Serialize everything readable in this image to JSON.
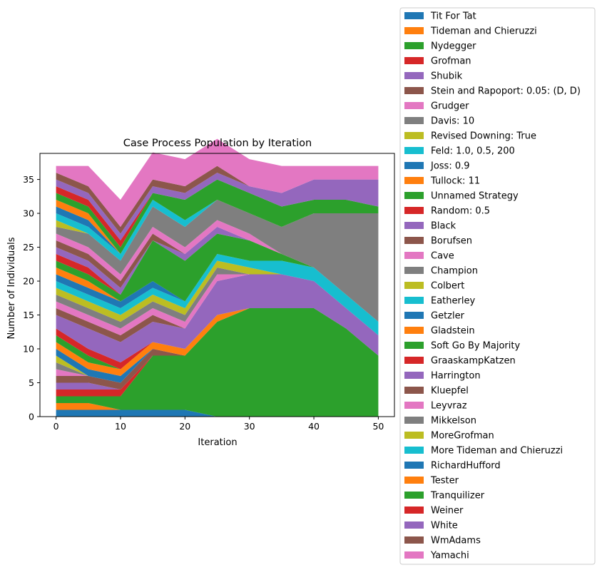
{
  "chart_data": {
    "type": "area",
    "stacked": true,
    "title": "Case Process Population by Iteration",
    "xlabel": "Iteration",
    "ylabel": "Number of Individuals",
    "xlim": [
      -2.5,
      52.5
    ],
    "ylim": [
      0,
      38.85
    ],
    "xticks": [
      0,
      10,
      20,
      30,
      40,
      50
    ],
    "yticks": [
      0,
      5,
      10,
      15,
      20,
      25,
      30,
      35
    ],
    "grid": false,
    "legend_position": "outside right",
    "x": [
      0,
      5,
      10,
      15,
      20,
      25,
      30,
      35,
      40,
      45,
      50
    ],
    "series": [
      {
        "name": "Tit For Tat",
        "color": "#1f77b4",
        "values": [
          1,
          1,
          1,
          1,
          1,
          0,
          0,
          0,
          0,
          0,
          0
        ]
      },
      {
        "name": "Tideman and Chieruzzi",
        "color": "#ff7f0e",
        "values": [
          1,
          1,
          0,
          0,
          0,
          0,
          0,
          0,
          0,
          0,
          0
        ]
      },
      {
        "name": "Nydegger",
        "color": "#2ca02c",
        "values": [
          1,
          1,
          2,
          8,
          8,
          14,
          16,
          16,
          16,
          13,
          9
        ]
      },
      {
        "name": "Grofman",
        "color": "#d62728",
        "values": [
          1,
          1,
          1,
          0,
          0,
          0,
          0,
          0,
          0,
          0,
          0
        ]
      },
      {
        "name": "Shubik",
        "color": "#9467bd",
        "values": [
          1,
          1,
          0,
          0,
          0,
          0,
          0,
          0,
          0,
          0,
          0
        ]
      },
      {
        "name": "Stein and Rapoport: 0.05: (D, D)",
        "color": "#8c564b",
        "values": [
          1,
          1,
          1,
          1,
          0,
          0,
          0,
          0,
          0,
          0,
          0
        ]
      },
      {
        "name": "Grudger",
        "color": "#e377c2",
        "values": [
          1,
          0,
          0,
          0,
          0,
          0,
          0,
          0,
          0,
          0,
          0
        ]
      },
      {
        "name": "Davis: 10",
        "color": "#7f7f7f",
        "values": [
          1,
          0,
          0,
          0,
          0,
          0,
          0,
          0,
          0,
          0,
          0
        ]
      },
      {
        "name": "Revised Downing: True",
        "color": "#bcbd22",
        "values": [
          1,
          0,
          0,
          0,
          0,
          0,
          0,
          0,
          0,
          0,
          0
        ]
      },
      {
        "name": "Feld: 1.0, 0.5, 200",
        "color": "#17becf",
        "values": [
          0,
          0,
          0,
          0,
          0,
          0,
          0,
          0,
          0,
          0,
          0
        ]
      },
      {
        "name": "Joss: 0.9",
        "color": "#1f77b4",
        "values": [
          1,
          1,
          1,
          0,
          0,
          0,
          0,
          0,
          0,
          0,
          0
        ]
      },
      {
        "name": "Tullock: 11",
        "color": "#ff7f0e",
        "values": [
          1,
          1,
          1,
          1,
          1,
          1,
          0,
          0,
          0,
          0,
          0
        ]
      },
      {
        "name": "Unnamed Strategy",
        "color": "#2ca02c",
        "values": [
          1,
          1,
          0,
          0,
          0,
          0,
          0,
          0,
          0,
          0,
          0
        ]
      },
      {
        "name": "Random: 0.5",
        "color": "#d62728",
        "values": [
          1,
          1,
          1,
          0,
          0,
          0,
          0,
          0,
          0,
          0,
          0
        ]
      },
      {
        "name": "Black",
        "color": "#9467bd",
        "values": [
          2,
          3,
          3,
          3,
          3,
          5,
          5,
          5,
          4,
          3,
          3
        ]
      },
      {
        "name": "Borufsen",
        "color": "#8c564b",
        "values": [
          1,
          1,
          1,
          1,
          0,
          0,
          0,
          0,
          0,
          0,
          0
        ]
      },
      {
        "name": "Cave",
        "color": "#e377c2",
        "values": [
          1,
          1,
          1,
          1,
          1,
          1,
          0,
          0,
          0,
          0,
          0
        ]
      },
      {
        "name": "Champion",
        "color": "#7f7f7f",
        "values": [
          1,
          1,
          1,
          1,
          1,
          1,
          0,
          0,
          0,
          0,
          0
        ]
      },
      {
        "name": "Colbert",
        "color": "#bcbd22",
        "values": [
          1,
          1,
          1,
          1,
          1,
          1,
          1,
          0,
          0,
          0,
          0
        ]
      },
      {
        "name": "Eatherley",
        "color": "#17becf",
        "values": [
          1,
          1,
          1,
          1,
          1,
          1,
          1,
          2,
          2,
          2,
          2
        ]
      },
      {
        "name": "Getzler",
        "color": "#1f77b4",
        "values": [
          1,
          1,
          1,
          1,
          0,
          0,
          0,
          0,
          0,
          0,
          0
        ]
      },
      {
        "name": "Gladstein",
        "color": "#ff7f0e",
        "values": [
          1,
          1,
          0,
          0,
          0,
          0,
          0,
          0,
          0,
          0,
          0
        ]
      },
      {
        "name": "Soft Go By Majority",
        "color": "#2ca02c",
        "values": [
          1,
          1,
          1,
          6,
          6,
          3,
          3,
          1,
          0,
          0,
          0
        ]
      },
      {
        "name": "GraaskampKatzen",
        "color": "#d62728",
        "values": [
          1,
          1,
          0,
          0,
          0,
          0,
          0,
          0,
          0,
          0,
          0
        ]
      },
      {
        "name": "Harrington",
        "color": "#9467bd",
        "values": [
          1,
          1,
          1,
          0,
          1,
          1,
          0,
          0,
          0,
          0,
          0
        ]
      },
      {
        "name": "Kluepfel",
        "color": "#8c564b",
        "values": [
          1,
          1,
          1,
          1,
          0,
          0,
          0,
          0,
          0,
          0,
          0
        ]
      },
      {
        "name": "Leyvraz",
        "color": "#e377c2",
        "values": [
          1,
          1,
          1,
          1,
          1,
          1,
          1,
          0,
          0,
          0,
          0
        ]
      },
      {
        "name": "Mikkelson",
        "color": "#7f7f7f",
        "values": [
          1,
          2,
          2,
          3,
          3,
          3,
          3,
          4,
          8,
          12,
          16
        ]
      },
      {
        "name": "MoreGrofman",
        "color": "#bcbd22",
        "values": [
          1,
          0,
          0,
          0,
          0,
          0,
          0,
          0,
          0,
          0,
          0
        ]
      },
      {
        "name": "More Tideman and Chieruzzi",
        "color": "#17becf",
        "values": [
          1,
          1,
          1,
          1,
          1,
          0,
          0,
          0,
          0,
          0,
          0
        ]
      },
      {
        "name": "RichardHufford",
        "color": "#1f77b4",
        "values": [
          1,
          1,
          0,
          0,
          0,
          0,
          0,
          0,
          0,
          0,
          0
        ]
      },
      {
        "name": "Tester",
        "color": "#ff7f0e",
        "values": [
          1,
          1,
          0,
          0,
          0,
          0,
          0,
          0,
          0,
          0,
          0
        ]
      },
      {
        "name": "Tranquilizer",
        "color": "#2ca02c",
        "values": [
          1,
          1,
          1,
          1,
          3,
          3,
          3,
          3,
          2,
          2,
          1
        ]
      },
      {
        "name": "Weiner",
        "color": "#d62728",
        "values": [
          1,
          1,
          1,
          0,
          0,
          0,
          0,
          0,
          0,
          0,
          0
        ]
      },
      {
        "name": "White",
        "color": "#9467bd",
        "values": [
          1,
          1,
          1,
          1,
          1,
          1,
          1,
          2,
          3,
          3,
          4
        ]
      },
      {
        "name": "WmAdams",
        "color": "#8c564b",
        "values": [
          1,
          1,
          1,
          1,
          1,
          1,
          0,
          0,
          0,
          0,
          0
        ]
      },
      {
        "name": "Yamachi",
        "color": "#e377c2",
        "values": [
          1,
          3,
          4,
          4,
          4,
          4,
          4,
          4,
          2,
          2,
          2
        ]
      }
    ]
  }
}
